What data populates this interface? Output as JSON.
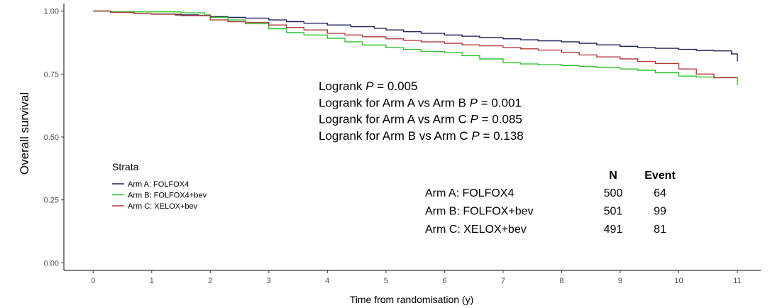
{
  "chart_data": {
    "type": "line",
    "step": true,
    "xlabel": "Time from randomisation (y)",
    "ylabel": "Overall survival",
    "xlim": [
      -0.5,
      11.4
    ],
    "ylim": [
      -0.03,
      1.03
    ],
    "x_ticks": [
      0,
      1,
      2,
      3,
      4,
      5,
      6,
      7,
      8,
      9,
      10,
      11
    ],
    "y_ticks": [
      0.0,
      0.25,
      0.5,
      0.75,
      1.0
    ],
    "y_tick_labels": [
      "0.00",
      "0.25",
      "0.50",
      "0.75",
      "1.00"
    ],
    "grid": false,
    "legend": {
      "title": "Strata",
      "position": "left",
      "entries": [
        "Arm A: FOLFOX4",
        "Arm B: FOLFOX4+bev",
        "Arm C: XELOX+bev"
      ]
    },
    "series": [
      {
        "name": "Arm A: FOLFOX4",
        "color": "#1f1f5e",
        "x": [
          0,
          0.3,
          0.7,
          1.0,
          1.4,
          1.8,
          2.0,
          2.3,
          2.6,
          3.0,
          3.3,
          3.6,
          4.0,
          4.4,
          4.8,
          5.0,
          5.3,
          5.6,
          6.0,
          6.3,
          6.6,
          7.0,
          7.3,
          7.6,
          8.0,
          8.3,
          8.6,
          9.0,
          9.3,
          9.6,
          10.0,
          10.3,
          10.6,
          10.9,
          11.0
        ],
        "y": [
          1.0,
          0.995,
          0.99,
          0.988,
          0.985,
          0.982,
          0.978,
          0.975,
          0.972,
          0.965,
          0.958,
          0.952,
          0.945,
          0.938,
          0.932,
          0.925,
          0.918,
          0.912,
          0.905,
          0.9,
          0.895,
          0.89,
          0.886,
          0.882,
          0.878,
          0.872,
          0.866,
          0.86,
          0.855,
          0.852,
          0.848,
          0.844,
          0.842,
          0.83,
          0.8
        ]
      },
      {
        "name": "Arm B: FOLFOX4+bev",
        "color": "#2ec22e",
        "x": [
          0,
          0.3,
          0.7,
          1.0,
          1.5,
          1.9,
          2.0,
          2.3,
          2.6,
          3.0,
          3.3,
          3.6,
          4.0,
          4.3,
          4.6,
          5.0,
          5.3,
          5.6,
          6.0,
          6.3,
          6.6,
          7.0,
          7.3,
          7.6,
          8.0,
          8.3,
          8.6,
          9.0,
          9.3,
          9.6,
          10.0,
          10.3,
          10.6,
          11.0
        ],
        "y": [
          1.0,
          0.998,
          0.997,
          0.997,
          0.993,
          0.985,
          0.975,
          0.965,
          0.95,
          0.93,
          0.915,
          0.905,
          0.892,
          0.878,
          0.865,
          0.855,
          0.848,
          0.84,
          0.835,
          0.823,
          0.81,
          0.795,
          0.79,
          0.787,
          0.784,
          0.78,
          0.776,
          0.77,
          0.765,
          0.755,
          0.742,
          0.738,
          0.736,
          0.705
        ]
      },
      {
        "name": "Arm C: XELOX+bev",
        "color": "#b03a3a",
        "x": [
          0,
          0.3,
          0.7,
          1.0,
          1.5,
          2.0,
          2.3,
          2.6,
          3.0,
          3.3,
          3.6,
          4.0,
          4.3,
          4.6,
          5.0,
          5.3,
          5.6,
          6.0,
          6.3,
          6.6,
          7.0,
          7.3,
          7.6,
          8.0,
          8.3,
          8.6,
          9.0,
          9.3,
          9.6,
          10.0,
          10.3,
          10.6,
          11.0
        ],
        "y": [
          1.0,
          0.995,
          0.99,
          0.988,
          0.982,
          0.965,
          0.958,
          0.955,
          0.945,
          0.935,
          0.925,
          0.912,
          0.905,
          0.898,
          0.89,
          0.884,
          0.878,
          0.872,
          0.866,
          0.862,
          0.855,
          0.85,
          0.845,
          0.836,
          0.826,
          0.818,
          0.81,
          0.8,
          0.792,
          0.77,
          0.75,
          0.735,
          0.735
        ]
      }
    ],
    "annotations": [
      {
        "prefix": "Logrank ",
        "p": "P",
        "suffix": " = 0.005"
      },
      {
        "prefix": "Logrank for Arm A vs Arm B ",
        "p": "P",
        "suffix": " = 0.001"
      },
      {
        "prefix": "Logrank for Arm A vs Arm C ",
        "p": "P",
        "suffix": " = 0.085"
      },
      {
        "prefix": "Logrank for Arm B vs Arm C ",
        "p": "P",
        "suffix": " = 0.138"
      }
    ],
    "table": {
      "headers": [
        "N",
        "Event"
      ],
      "rows": [
        {
          "label": "Arm A: FOLFOX4",
          "n": "500",
          "event": "64"
        },
        {
          "label": "Arm B: FOLFOX+bev",
          "n": "501",
          "event": "99"
        },
        {
          "label": "Arm C: XELOX+bev",
          "n": "491",
          "event": "81"
        }
      ]
    }
  }
}
